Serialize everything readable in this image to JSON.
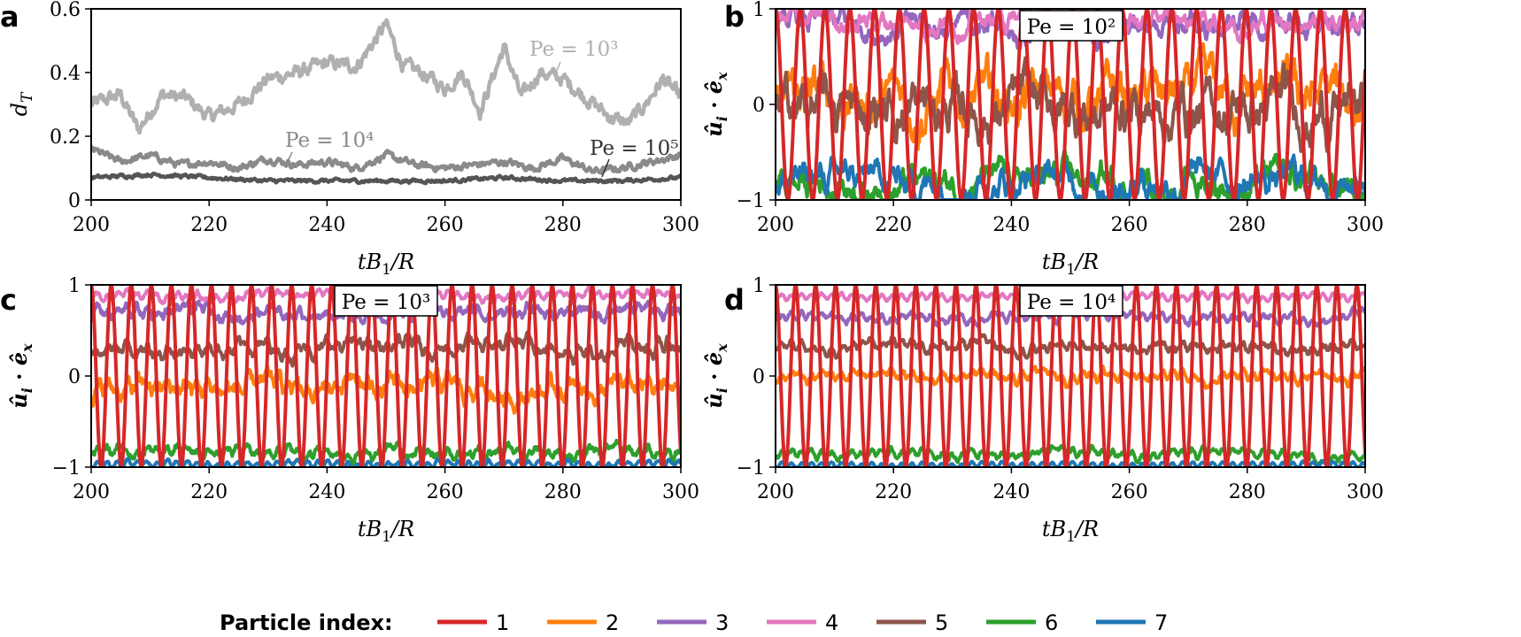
{
  "chart_data": [
    {
      "panel": "a",
      "type": "line",
      "xlabel": "tB1/R",
      "ylabel": "dT",
      "xlim": [
        200,
        300
      ],
      "ylim": [
        0,
        0.6
      ],
      "xticks": [
        "200",
        "220",
        "240",
        "260",
        "280",
        "300"
      ],
      "yticks": [
        "0",
        "0.2",
        "0.4",
        "0.6"
      ],
      "series": [
        {
          "annotation": "Pe = 10³",
          "color": "#b0b0b0",
          "x": [
            200,
            205,
            208,
            212,
            216,
            220,
            225,
            230,
            235,
            240,
            245,
            250,
            253,
            256,
            260,
            263,
            266,
            270,
            273,
            276,
            280,
            284,
            288,
            291,
            294,
            297,
            300
          ],
          "y": [
            0.3,
            0.33,
            0.22,
            0.33,
            0.32,
            0.26,
            0.3,
            0.38,
            0.4,
            0.43,
            0.42,
            0.55,
            0.42,
            0.4,
            0.35,
            0.4,
            0.28,
            0.48,
            0.32,
            0.4,
            0.38,
            0.32,
            0.26,
            0.24,
            0.3,
            0.38,
            0.32
          ]
        },
        {
          "annotation": "Pe = 10⁴",
          "color": "#8a8a8a",
          "x": [
            200,
            205,
            210,
            215,
            220,
            225,
            230,
            235,
            240,
            245,
            250,
            255,
            260,
            265,
            270,
            275,
            280,
            285,
            290,
            295,
            300
          ],
          "y": [
            0.16,
            0.12,
            0.14,
            0.11,
            0.12,
            0.1,
            0.13,
            0.11,
            0.12,
            0.1,
            0.14,
            0.11,
            0.1,
            0.11,
            0.12,
            0.1,
            0.13,
            0.09,
            0.1,
            0.12,
            0.14
          ]
        },
        {
          "annotation": "Pe = 10⁵",
          "color": "#555555",
          "x": [
            200,
            210,
            220,
            230,
            240,
            250,
            260,
            270,
            280,
            290,
            300
          ],
          "y": [
            0.07,
            0.08,
            0.07,
            0.06,
            0.06,
            0.06,
            0.06,
            0.07,
            0.06,
            0.06,
            0.07
          ]
        }
      ]
    },
    {
      "panel": "b",
      "type": "line",
      "box_label": "Pe = 10²",
      "xlabel": "tB1/R",
      "ylabel": "ûi · êx",
      "xlim": [
        200,
        300
      ],
      "ylim": [
        -1,
        1
      ],
      "xticks": [
        "200",
        "220",
        "240",
        "260",
        "280",
        "300"
      ],
      "yticks": [
        "−1",
        "0",
        "1"
      ],
      "series": [
        {
          "name": "1",
          "oscillating": true,
          "period": 4.2,
          "amplitude": 1.0,
          "mean": 0.0
        },
        {
          "name": "2",
          "mean": 0.05,
          "noise": 0.25
        },
        {
          "name": "3",
          "mean": 0.82,
          "noise": 0.12
        },
        {
          "name": "4",
          "mean": 0.88,
          "noise": 0.1
        },
        {
          "name": "5",
          "mean": -0.05,
          "noise": 0.25
        },
        {
          "name": "6",
          "mean": -0.82,
          "noise": 0.15
        },
        {
          "name": "7",
          "mean": -0.78,
          "noise": 0.15
        }
      ]
    },
    {
      "panel": "c",
      "type": "line",
      "box_label": "Pe = 10³",
      "xlabel": "tB1/R",
      "ylabel": "ûi · êx",
      "xlim": [
        200,
        300
      ],
      "ylim": [
        -1,
        1
      ],
      "xticks": [
        "200",
        "220",
        "240",
        "260",
        "280",
        "300"
      ],
      "yticks": [
        "−1",
        "0",
        "1"
      ],
      "series": [
        {
          "name": "1",
          "oscillating": true,
          "period": 3.4,
          "amplitude": 1.0,
          "mean": 0.0
        },
        {
          "name": "2",
          "mean": -0.15,
          "noise": 0.12
        },
        {
          "name": "3",
          "mean": 0.7,
          "noise": 0.07
        },
        {
          "name": "4",
          "mean": 0.88,
          "noise": 0.04
        },
        {
          "name": "5",
          "mean": 0.32,
          "noise": 0.08
        },
        {
          "name": "6",
          "mean": -0.83,
          "noise": 0.06
        },
        {
          "name": "7",
          "mean": -0.97,
          "noise": 0.02
        }
      ]
    },
    {
      "panel": "d",
      "type": "line",
      "box_label": "Pe = 10⁴",
      "xlabel": "tB1/R",
      "ylabel": "ûi · êx",
      "xlim": [
        200,
        300
      ],
      "ylim": [
        -1,
        1
      ],
      "xticks": [
        "200",
        "220",
        "240",
        "260",
        "280",
        "300"
      ],
      "yticks": [
        "−1",
        "0",
        "1"
      ],
      "series": [
        {
          "name": "1",
          "oscillating": true,
          "period": 3.4,
          "amplitude": 1.0,
          "mean": 0.0
        },
        {
          "name": "2",
          "mean": 0.0,
          "noise": 0.05
        },
        {
          "name": "3",
          "mean": 0.65,
          "noise": 0.04
        },
        {
          "name": "4",
          "mean": 0.87,
          "noise": 0.02
        },
        {
          "name": "5",
          "mean": 0.33,
          "noise": 0.05
        },
        {
          "name": "6",
          "mean": -0.85,
          "noise": 0.04
        },
        {
          "name": "7",
          "mean": -0.98,
          "noise": 0.01
        }
      ]
    }
  ],
  "legend": {
    "title": "Particle index:",
    "items": [
      {
        "label": "1",
        "color": "#d62728"
      },
      {
        "label": "2",
        "color": "#ff7f0e"
      },
      {
        "label": "3",
        "color": "#9467bd"
      },
      {
        "label": "4",
        "color": "#e377c2"
      },
      {
        "label": "5",
        "color": "#8c564b"
      },
      {
        "label": "6",
        "color": "#2ca02c"
      },
      {
        "label": "7",
        "color": "#1f77b4"
      }
    ]
  }
}
